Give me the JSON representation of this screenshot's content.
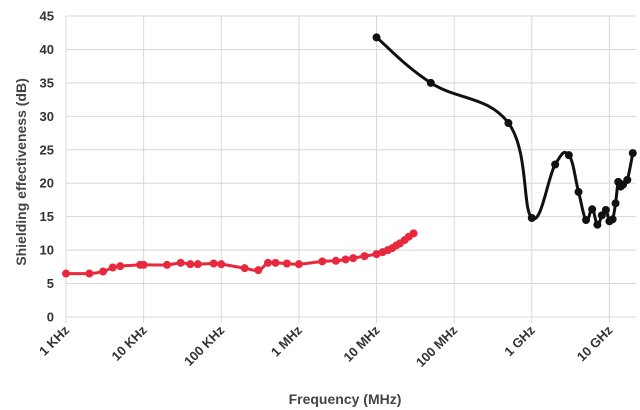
{
  "chart_data": {
    "type": "line",
    "xlabel": "Frequency (MHz)",
    "ylabel": "Shielding effectiveness (dB)",
    "xscale": "log",
    "xlim": [
      0.001,
      22000
    ],
    "ylim": [
      0,
      45
    ],
    "yticks": [
      0,
      5,
      10,
      15,
      20,
      25,
      30,
      35,
      40,
      45
    ],
    "xticks": [
      {
        "value": 0.001,
        "label": "1 KHz"
      },
      {
        "value": 0.01,
        "label": "10 KHz"
      },
      {
        "value": 0.1,
        "label": "100 KHz"
      },
      {
        "value": 1,
        "label": "1 MHz"
      },
      {
        "value": 10,
        "label": "10 MHz"
      },
      {
        "value": 100,
        "label": "100 MHz"
      },
      {
        "value": 1000,
        "label": "1 GHz"
      },
      {
        "value": 10000,
        "label": "10 GHz"
      }
    ],
    "grid": true,
    "series": [
      {
        "color": "#e8283c",
        "points": [
          [
            0.001,
            6.5
          ],
          [
            0.002,
            6.5
          ],
          [
            0.003,
            6.8
          ],
          [
            0.004,
            7.4
          ],
          [
            0.005,
            7.6
          ],
          [
            0.009,
            7.8
          ],
          [
            0.01,
            7.8
          ],
          [
            0.02,
            7.8
          ],
          [
            0.03,
            8.1
          ],
          [
            0.04,
            7.9
          ],
          [
            0.05,
            7.9
          ],
          [
            0.08,
            8.0
          ],
          [
            0.1,
            7.9
          ],
          [
            0.2,
            7.3
          ],
          [
            0.3,
            7.0
          ],
          [
            0.4,
            8.1
          ],
          [
            0.5,
            8.1
          ],
          [
            0.7,
            8.0
          ],
          [
            1,
            7.9
          ],
          [
            2,
            8.3
          ],
          [
            3,
            8.4
          ],
          [
            4,
            8.6
          ],
          [
            5,
            8.8
          ],
          [
            7,
            9.1
          ],
          [
            10,
            9.4
          ],
          [
            12,
            9.7
          ],
          [
            14,
            10.0
          ],
          [
            16,
            10.3
          ],
          [
            18,
            10.7
          ],
          [
            20,
            11.0
          ],
          [
            23,
            11.5
          ],
          [
            26,
            12.0
          ],
          [
            30,
            12.5
          ]
        ]
      },
      {
        "color": "#111111",
        "points": [
          [
            10,
            41.8
          ],
          [
            50,
            35.0
          ],
          [
            500,
            29.0
          ],
          [
            1000,
            14.8
          ],
          [
            2000,
            22.8
          ],
          [
            3000,
            24.2
          ],
          [
            4000,
            18.7
          ],
          [
            5000,
            14.5
          ],
          [
            6000,
            16.1
          ],
          [
            7000,
            13.8
          ],
          [
            8000,
            15.2
          ],
          [
            9000,
            16.0
          ],
          [
            10000,
            14.3
          ],
          [
            11000,
            14.6
          ],
          [
            12000,
            17.0
          ],
          [
            13000,
            20.2
          ],
          [
            14000,
            19.5
          ],
          [
            15000,
            19.8
          ],
          [
            17000,
            20.5
          ],
          [
            20000,
            24.5
          ]
        ]
      }
    ]
  }
}
